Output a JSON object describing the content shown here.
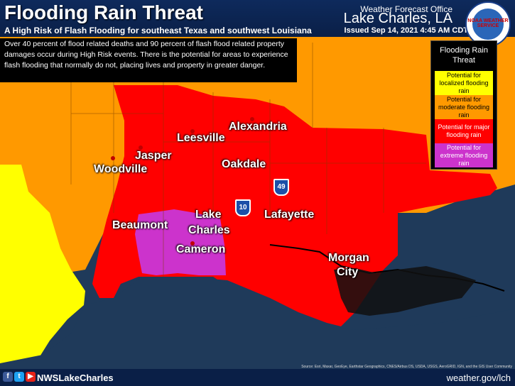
{
  "header": {
    "title": "Flooding Rain Threat",
    "subtitle": "A High Risk of Flash Flooding for southeast Texas and southwest Louisiana",
    "office_line1": "Weather Forecast Office",
    "office_line2": "Lake Charles, LA",
    "issued": "Issued Sep 14, 2021 4:45 AM CDT",
    "logo_text": "NOAA WEATHER SERVICE"
  },
  "note": "Over 40 percent of flood related deaths and 90 percent of flash flood related property damages occur during High Risk events. There is the potential for areas to experience flash flooding that normally do not, placing lives and property in greater danger.",
  "legend": {
    "title": "Flooding Rain Threat",
    "items": [
      {
        "label": "Potential for localized flooding rain",
        "color": "#ffff00",
        "text_color": "#000000"
      },
      {
        "label": "Potential for moderate flooding rain",
        "color": "#ff9900",
        "text_color": "#000000"
      },
      {
        "label": "Potential for major flooding rain",
        "color": "#ff0000",
        "text_color": "#ffffff"
      },
      {
        "label": "Potential for extreme flooding rain",
        "color": "#cc33cc",
        "text_color": "#ffffff"
      }
    ]
  },
  "cities": {
    "alexandria": "Alexandria",
    "leesville": "Leesville",
    "jasper": "Jasper",
    "woodville": "Woodville",
    "oakdale": "Oakdale",
    "beaumont": "Beaumont",
    "lake_charles_1": "Lake",
    "lake_charles_2": "Charles",
    "lafayette": "Lafayette",
    "cameron": "Cameron",
    "morgan_city_1": "Morgan",
    "morgan_city_2": "City"
  },
  "highways": {
    "i49": "49",
    "i10": "10"
  },
  "footer": {
    "handle": "NWSLakeCharles",
    "website": "weather.gov/lch",
    "source": "Source: Esri, Maxar, GeoEye, Earthstar Geographics, CNES/Airbus DS, USDA, USGS, AeroGRID, IGN, and the GIS User Community"
  },
  "colors": {
    "localized": "#ffff00",
    "moderate": "#ff9900",
    "major": "#ff0000",
    "extreme": "#cc33cc",
    "gulf": "#1f3a5a",
    "header": "#0e2a5c"
  }
}
